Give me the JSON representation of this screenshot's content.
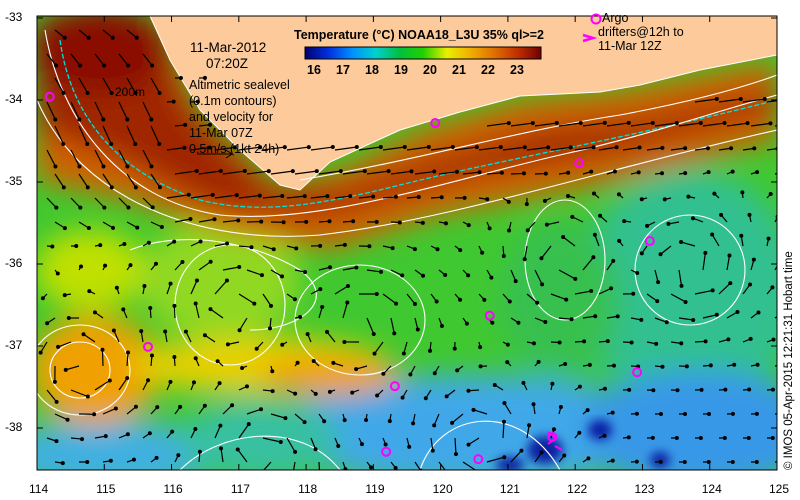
{
  "title": "Temperature (°C) NOAA18_L3U 35% ql>=2",
  "colorbar": {
    "ticks": [
      "16",
      "17",
      "18",
      "19",
      "20",
      "21",
      "22",
      "23"
    ],
    "colors": [
      "#000070",
      "#0030e0",
      "#0090ff",
      "#00d0d0",
      "#00c040",
      "#20d000",
      "#e8f000",
      "#f0b000",
      "#e07000",
      "#c03000",
      "#700000"
    ]
  },
  "date_label": {
    "date": "11-Mar-2012",
    "time": "07:20Z"
  },
  "altimetry_note": {
    "lines": [
      "Altimetric sealevel",
      "(0.1m contours)",
      "and velocity for",
      "11-Mar 07Z",
      "0.5m/s (1kt 24h)"
    ]
  },
  "isobath_label": "200m",
  "argo_legend": {
    "line1": "Argo",
    "line2": "drifters@12h to",
    "line3": "11-Mar 12Z"
  },
  "credit": "© IMOS 05-Apr-2015 12:21:31 Hobart time",
  "axes": {
    "x_ticks": [
      "114",
      "115",
      "116",
      "117",
      "118",
      "119",
      "120",
      "121",
      "122",
      "123",
      "124",
      "125"
    ],
    "y_ticks": [
      "-33",
      "-34",
      "-35",
      "-36",
      "-37",
      "-38"
    ],
    "lon_range": [
      114,
      125
    ],
    "lat_range": [
      -38.5,
      -33
    ]
  },
  "argo_floats": [
    {
      "lon": 114.19,
      "lat": -33.96
    },
    {
      "lon": 119.92,
      "lat": -34.28
    },
    {
      "lon": 122.06,
      "lat": -34.77
    },
    {
      "lon": 123.11,
      "lat": -35.72
    },
    {
      "lon": 120.73,
      "lat": -36.63
    },
    {
      "lon": 115.65,
      "lat": -37.01
    },
    {
      "lon": 122.92,
      "lat": -37.32
    },
    {
      "lon": 119.32,
      "lat": -37.49
    },
    {
      "lon": 119.19,
      "lat": -38.29
    },
    {
      "lon": 120.56,
      "lat": -38.38
    },
    {
      "lon": 121.66,
      "lat": -38.11
    }
  ],
  "colors": {
    "land": "#fdcb9b",
    "argo": "#ff00ff",
    "contour": "#ffffff",
    "isobath": "#00e0e0"
  }
}
